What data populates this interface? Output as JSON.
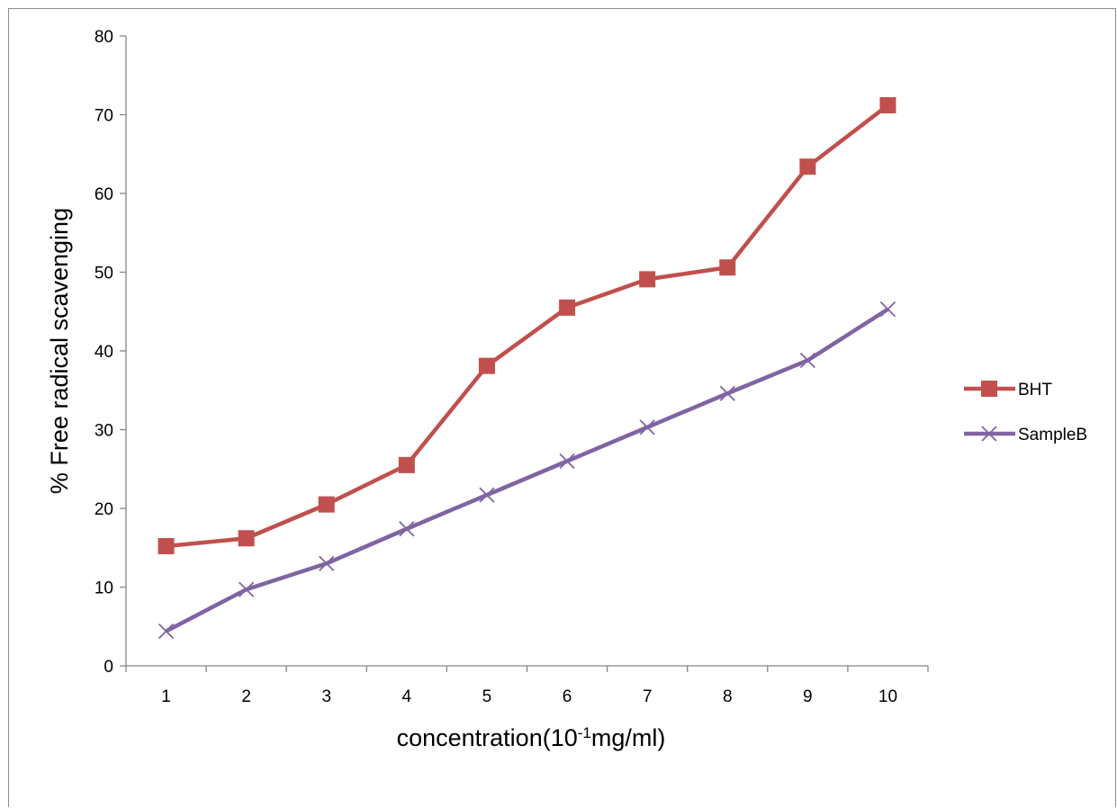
{
  "chart_data": {
    "type": "line",
    "title": "",
    "xlabel": {
      "main": "concentration(10",
      "superscript": "-1",
      "suffix": "mg/ml)"
    },
    "ylabel": "% Free radical scavenging",
    "x": [
      1,
      2,
      3,
      4,
      5,
      6,
      7,
      8,
      9,
      10
    ],
    "ylim": [
      0,
      80
    ],
    "yticks": [
      0,
      10,
      20,
      30,
      40,
      50,
      60,
      70,
      80
    ],
    "grid": false,
    "legend_position": "right",
    "series": [
      {
        "name": "BHT",
        "marker": "square",
        "color": "#c0504d",
        "values": [
          15.2,
          16.2,
          20.5,
          25.5,
          38.1,
          45.5,
          49.1,
          50.6,
          63.4,
          71.2
        ]
      },
      {
        "name": "SampleB",
        "marker": "x",
        "color": "#8064a2",
        "values": [
          4.4,
          9.7,
          13.0,
          17.4,
          21.7,
          26.0,
          30.3,
          34.6,
          38.8,
          45.3
        ]
      }
    ]
  }
}
